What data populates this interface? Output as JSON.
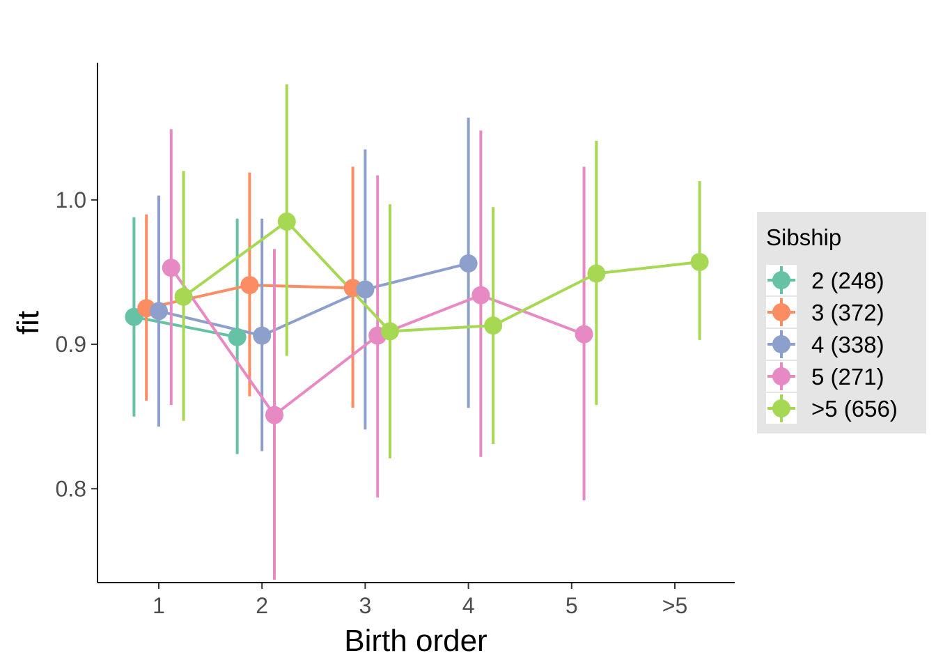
{
  "chart_data": {
    "type": "line",
    "subtype": "dodged points with error bars",
    "xlabel": "Birth order",
    "ylabel": "fit",
    "categories": [
      "1",
      "2",
      "3",
      "4",
      "5",
      ">5"
    ],
    "ylim": [
      0.735,
      1.095
    ],
    "yticks": [
      0.8,
      0.9,
      1.0
    ],
    "ytick_labels": [
      "0.8",
      "0.9",
      "1.0"
    ],
    "grid": false,
    "legend": {
      "title": "Sibship",
      "position": "right"
    },
    "series": [
      {
        "name": "2 (248)",
        "color": "#66C2A5",
        "points": [
          {
            "x": "1",
            "y": 0.919,
            "ymin": 0.85,
            "ymax": 0.988
          },
          {
            "x": "2",
            "y": 0.905,
            "ymin": 0.824,
            "ymax": 0.987
          }
        ]
      },
      {
        "name": "3 (372)",
        "color": "#FC8D62",
        "points": [
          {
            "x": "1",
            "y": 0.925,
            "ymin": 0.861,
            "ymax": 0.99
          },
          {
            "x": "2",
            "y": 0.941,
            "ymin": 0.864,
            "ymax": 1.019
          },
          {
            "x": "3",
            "y": 0.939,
            "ymin": 0.856,
            "ymax": 1.023
          }
        ]
      },
      {
        "name": "4 (338)",
        "color": "#8DA0CB",
        "points": [
          {
            "x": "1",
            "y": 0.923,
            "ymin": 0.843,
            "ymax": 1.003
          },
          {
            "x": "2",
            "y": 0.906,
            "ymin": 0.826,
            "ymax": 0.987
          },
          {
            "x": "3",
            "y": 0.938,
            "ymin": 0.841,
            "ymax": 1.035
          },
          {
            "x": "4",
            "y": 0.956,
            "ymin": 0.856,
            "ymax": 1.057
          }
        ]
      },
      {
        "name": "5 (271)",
        "color": "#E78AC3",
        "points": [
          {
            "x": "1",
            "y": 0.953,
            "ymin": 0.858,
            "ymax": 1.049
          },
          {
            "x": "2",
            "y": 0.851,
            "ymin": 0.737,
            "ymax": 0.966
          },
          {
            "x": "3",
            "y": 0.906,
            "ymin": 0.794,
            "ymax": 1.017
          },
          {
            "x": "4",
            "y": 0.934,
            "ymin": 0.822,
            "ymax": 1.048
          },
          {
            "x": "5",
            "y": 0.907,
            "ymin": 0.792,
            "ymax": 1.023
          }
        ]
      },
      {
        "name": ">5 (656)",
        "color": "#A6D854",
        "points": [
          {
            "x": "1",
            "y": 0.933,
            "ymin": 0.847,
            "ymax": 1.02
          },
          {
            "x": "2",
            "y": 0.985,
            "ymin": 0.892,
            "ymax": 1.08
          },
          {
            "x": "3",
            "y": 0.909,
            "ymin": 0.821,
            "ymax": 0.997
          },
          {
            "x": "4",
            "y": 0.913,
            "ymin": 0.831,
            "ymax": 0.995
          },
          {
            "x": "5",
            "y": 0.949,
            "ymin": 0.858,
            "ymax": 1.041
          },
          {
            "x": ">5",
            "y": 0.957,
            "ymin": 0.903,
            "ymax": 1.013
          }
        ]
      }
    ]
  }
}
